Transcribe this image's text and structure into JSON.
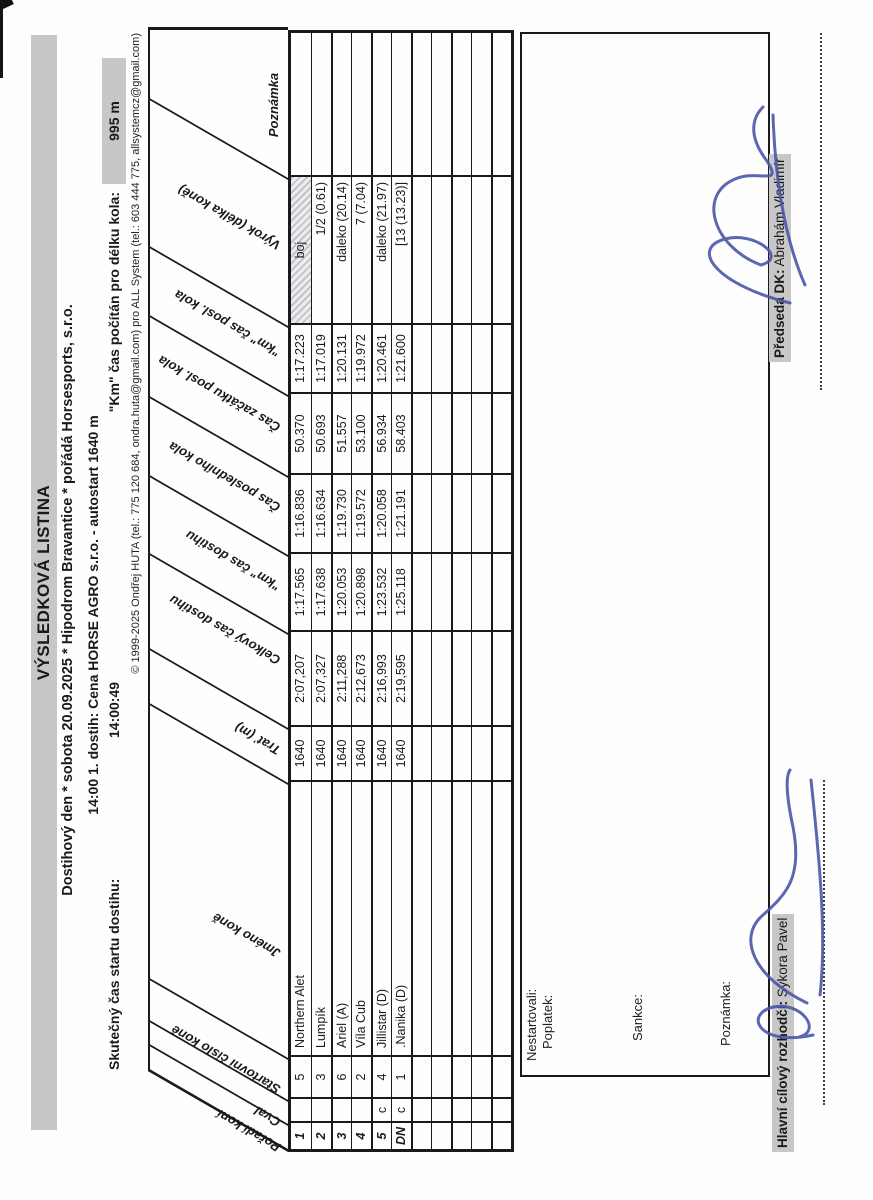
{
  "header": {
    "title": "VÝSLEDKOVÁ LISTINA",
    "event_line": "Dostihový den * sobota 20.09.2025 * Hipodrom Bravantice * pořádá Horsesports, s.r.o.",
    "race_line": "14:00 1. dostih: Cena HORSE AGRO s.r.o. - autostart 1640 m",
    "start_label": "Skutečný čas startu dostihu:",
    "start_value": "14:00:49",
    "km_label": "\"Km\" čas počítán pro délku kola:",
    "km_value": "995 m",
    "copyright": "© 1999-2025 Ondřej HUTA (tel.: 775 120 684, ondra.huta@gmail.com) pro ALL System (tel.: 603 444 775, allsystemcz@gmail.com)"
  },
  "table": {
    "columns": [
      {
        "key": "poradi",
        "label": "Pořadí koní"
      },
      {
        "key": "cval",
        "label": "Cval"
      },
      {
        "key": "cislo",
        "label": "Startovní číslo koně"
      },
      {
        "key": "jmeno",
        "label": "Jméno koně"
      },
      {
        "key": "trat",
        "label": "Trať (m)"
      },
      {
        "key": "celkovy",
        "label": "Celkový čas dostihu"
      },
      {
        "key": "km_dostihu",
        "label": "\"km\" čas dostihu"
      },
      {
        "key": "cas_posl",
        "label": "Čas posledního kola"
      },
      {
        "key": "cas_zacatku",
        "label": "Čas začátku posl. kola"
      },
      {
        "key": "km_posl",
        "label": "\"km\" čas posl. kola"
      },
      {
        "key": "vyrok",
        "label": "Výrok (délka koně)"
      },
      {
        "key": "poznamka",
        "label": "Poznámka"
      }
    ],
    "rows": [
      {
        "poradi": "1",
        "cval": "",
        "cislo": "5",
        "jmeno": "Northern Alet",
        "trat": "1640",
        "celkovy": "2:07,207",
        "km_dostihu": "1:17.565",
        "cas_posl": "1:16.836",
        "cas_zacatku": "50.370",
        "km_posl": "1:17.223",
        "vyrok": "boj",
        "poznamka": "",
        "vyrok_hatch": true
      },
      {
        "poradi": "2",
        "cval": "",
        "cislo": "3",
        "jmeno": "Lumpík",
        "trat": "1640",
        "celkovy": "2:07,327",
        "km_dostihu": "1:17.638",
        "cas_posl": "1:16.634",
        "cas_zacatku": "50.693",
        "km_posl": "1:17.019",
        "vyrok": "1/2 (0.61)",
        "poznamka": ""
      },
      {
        "poradi": "3",
        "cval": "",
        "cislo": "6",
        "jmeno": "Ariel (A)",
        "trat": "1640",
        "celkovy": "2:11,288",
        "km_dostihu": "1:20.053",
        "cas_posl": "1:19.730",
        "cas_zacatku": "51.557",
        "km_posl": "1:20.131",
        "vyrok": "daleko (20.14)",
        "poznamka": ""
      },
      {
        "poradi": "4",
        "cval": "",
        "cislo": "2",
        "jmeno": "Víla Cub",
        "trat": "1640",
        "celkovy": "2:12,673",
        "km_dostihu": "1:20.898",
        "cas_posl": "1:19.572",
        "cas_zacatku": "53.100",
        "km_posl": "1:19.972",
        "vyrok": "7 (7.04)",
        "poznamka": ""
      },
      {
        "poradi": "5",
        "cval": "c",
        "cislo": "4",
        "jmeno": "Jillistar (D)",
        "trat": "1640",
        "celkovy": "2:16,993",
        "km_dostihu": "1:23.532",
        "cas_posl": "1:20.058",
        "cas_zacatku": "56.934",
        "km_posl": "1:20.461",
        "vyrok": "daleko (21.97)",
        "poznamka": ""
      },
      {
        "poradi": "DN",
        "cval": "c",
        "cislo": "1",
        "jmeno": ".Nanika (D)",
        "trat": "1640",
        "celkovy": "2:19,595",
        "km_dostihu": "1:25.118",
        "cas_posl": "1:21.191",
        "cas_zacatku": "58.403",
        "km_posl": "1:21.600",
        "vyrok": "[13 (13.23)]",
        "poznamka": ""
      },
      {},
      {},
      {},
      {},
      {}
    ]
  },
  "footer": {
    "nestartovali_label": "Nestartovali:",
    "poplatek_label": "Poplatek:",
    "sankce_label": "Sankce:",
    "poznamka_label": "Poznámka:",
    "judge_label": "Hlavní cílový rozhodčí:",
    "judge_name": "Sýkora Pavel",
    "chairman_label": "Předseda DK:",
    "chairman_name": "Abrahám Vladimír"
  },
  "colors": {
    "highlight": "#c7c7c7",
    "ink": "#1a1a1a",
    "signature_blue": "#4a55a8"
  }
}
